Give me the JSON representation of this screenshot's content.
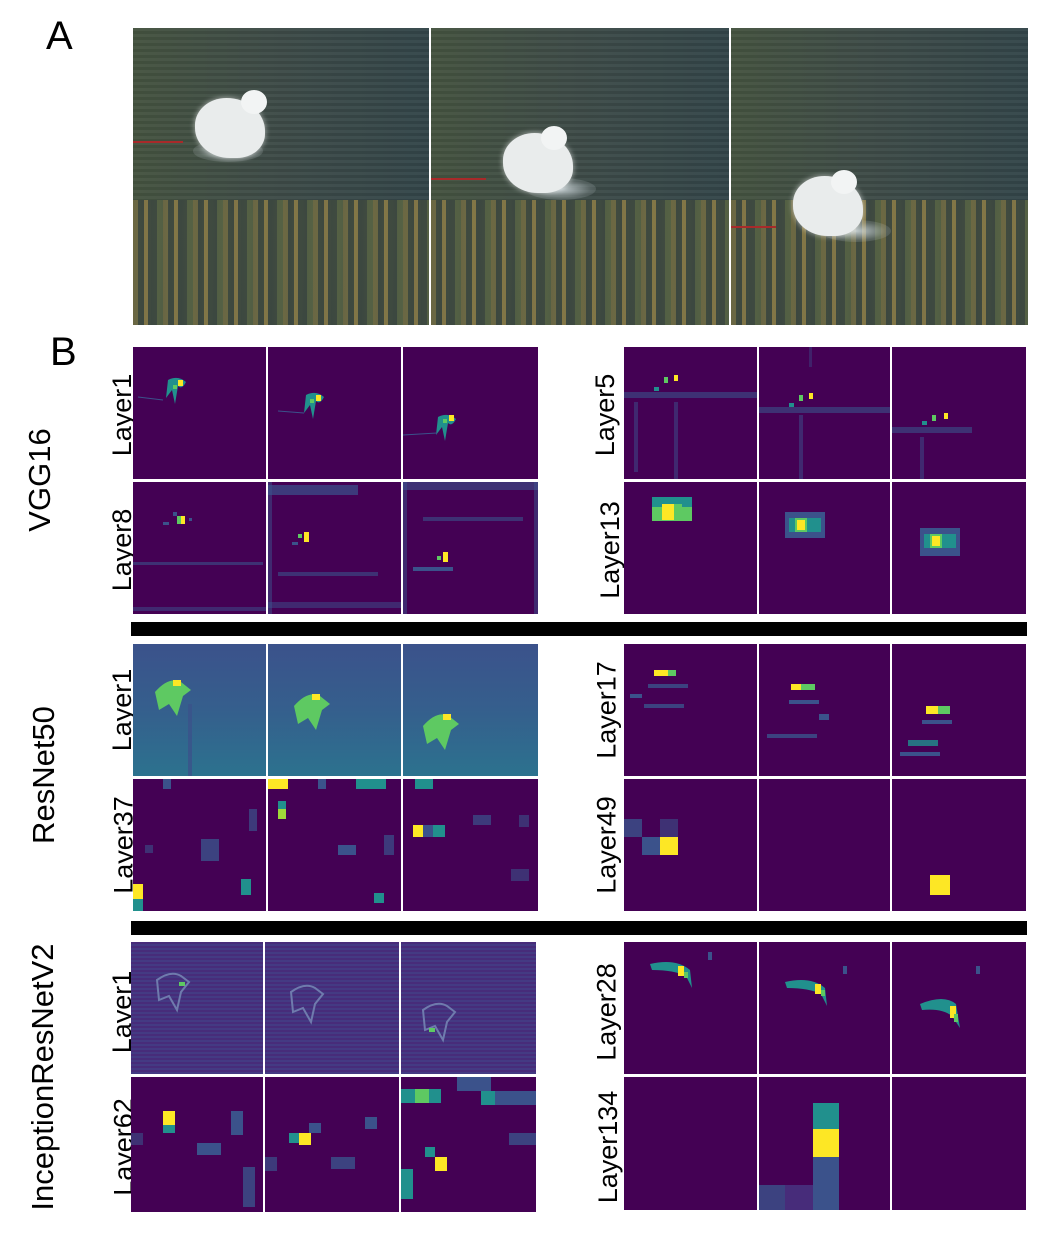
{
  "panels": {
    "a": "A",
    "b": "B"
  },
  "networks": [
    {
      "name": "VGG16",
      "layers_left": [
        "Layer1",
        "Layer8"
      ],
      "layers_right": [
        "Layer5",
        "Layer13"
      ]
    },
    {
      "name": "ResNet50",
      "layers_left": [
        "Layer1",
        "Layer37"
      ],
      "layers_right": [
        "Layer17",
        "Layer49"
      ]
    },
    {
      "name": "InceptionResNetV2",
      "layers_left": [
        "Layer1",
        "Layer62"
      ],
      "layers_right": [
        "Layer28",
        "Layer134"
      ]
    }
  ],
  "colors": {
    "viridis_dark": "#440154",
    "viridis_mid": "#21908d",
    "viridis_green": "#5ec962",
    "viridis_yellow": "#fde725",
    "viridis_blue": "#3b528b",
    "separator": "#000000"
  }
}
